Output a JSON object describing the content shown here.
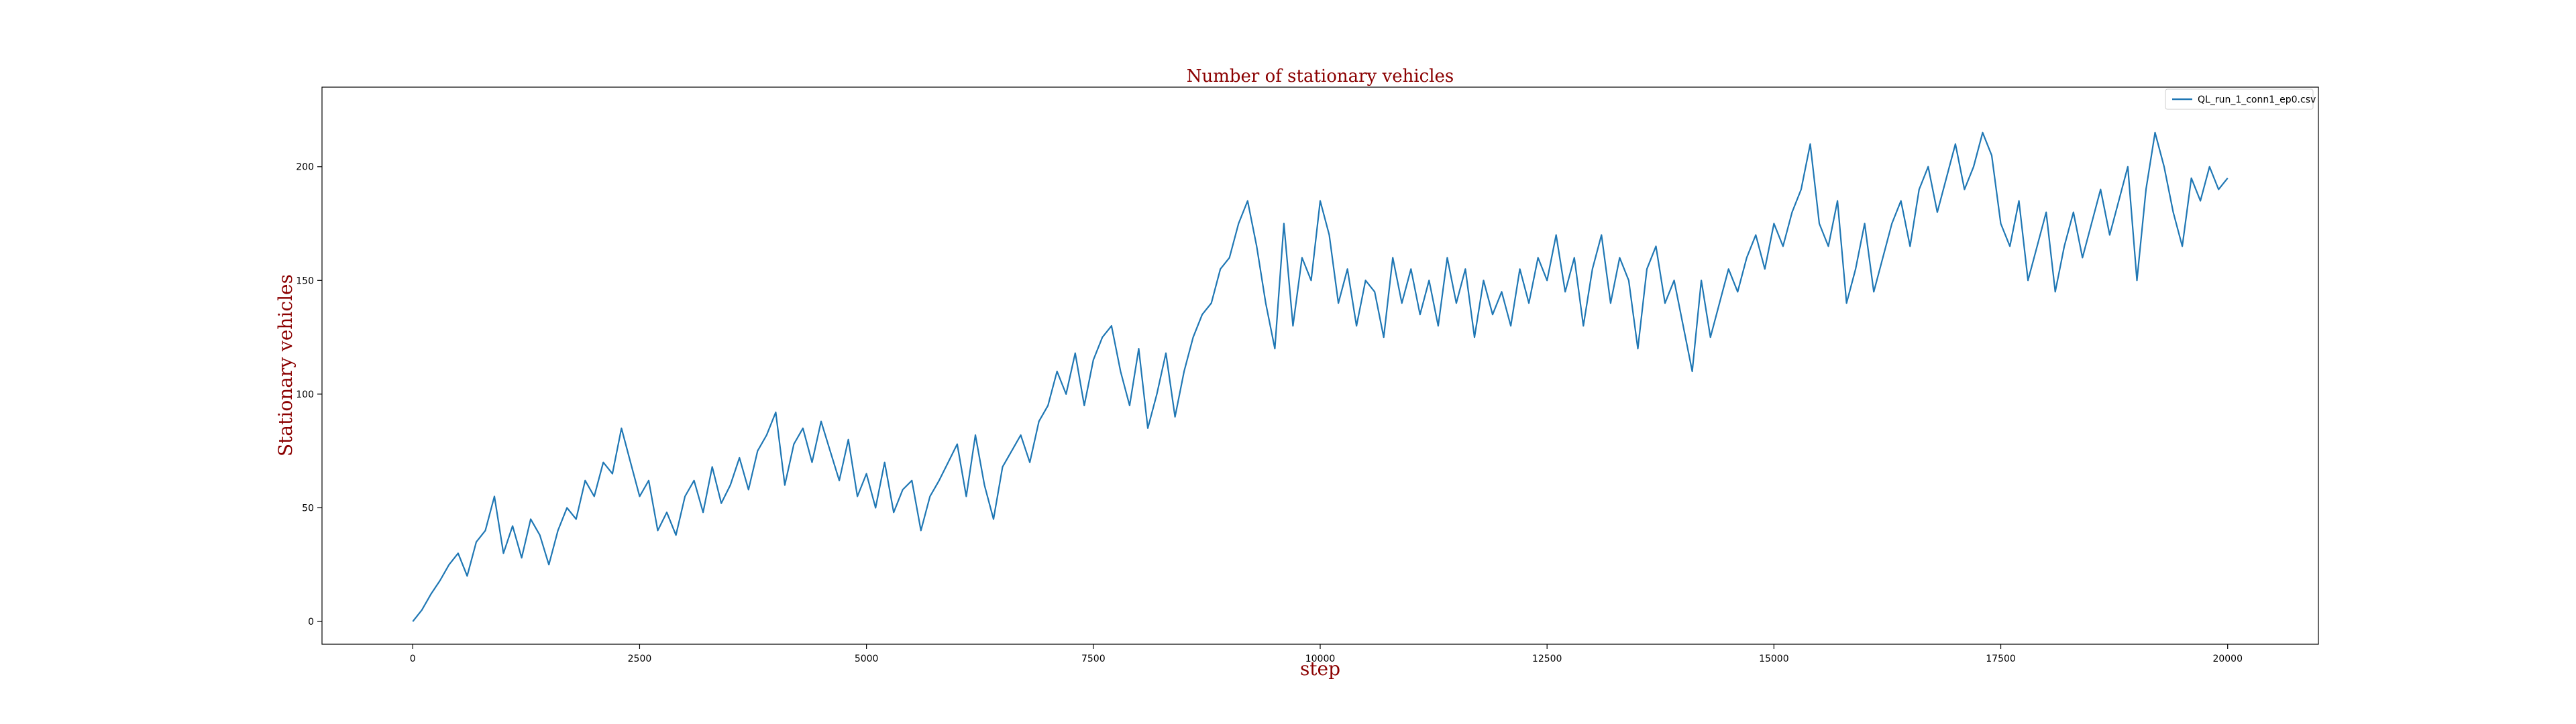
{
  "chart_data": {
    "type": "line",
    "title": "Number of stationary vehicles",
    "xlabel": "step",
    "ylabel": "Stationary vehicles",
    "xlim": [
      -1000,
      21000
    ],
    "ylim": [
      -10,
      235
    ],
    "xticks": [
      0,
      2500,
      5000,
      7500,
      10000,
      12500,
      15000,
      17500,
      20000
    ],
    "yticks": [
      0,
      50,
      100,
      150,
      200
    ],
    "grid": false,
    "legend_position": "top-right",
    "series": [
      {
        "name": "QL_run_1_conn1_ep0.csv",
        "color": "#1f77b4",
        "x": [
          0,
          100,
          200,
          300,
          400,
          500,
          600,
          700,
          800,
          900,
          1000,
          1100,
          1200,
          1300,
          1400,
          1500,
          1600,
          1700,
          1800,
          1900,
          2000,
          2100,
          2200,
          2300,
          2400,
          2500,
          2600,
          2700,
          2800,
          2900,
          3000,
          3100,
          3200,
          3300,
          3400,
          3500,
          3600,
          3700,
          3800,
          3900,
          4000,
          4100,
          4200,
          4300,
          4400,
          4500,
          4600,
          4700,
          4800,
          4900,
          5000,
          5100,
          5200,
          5300,
          5400,
          5500,
          5600,
          5700,
          5800,
          5900,
          6000,
          6100,
          6200,
          6300,
          6400,
          6500,
          6600,
          6700,
          6800,
          6900,
          7000,
          7100,
          7200,
          7300,
          7400,
          7500,
          7600,
          7700,
          7800,
          7900,
          8000,
          8100,
          8200,
          8300,
          8400,
          8500,
          8600,
          8700,
          8800,
          8900,
          9000,
          9100,
          9200,
          9300,
          9400,
          9500,
          9600,
          9700,
          9800,
          9900,
          10000,
          10100,
          10200,
          10300,
          10400,
          10500,
          10600,
          10700,
          10800,
          10900,
          11000,
          11100,
          11200,
          11300,
          11400,
          11500,
          11600,
          11700,
          11800,
          11900,
          12000,
          12100,
          12200,
          12300,
          12400,
          12500,
          12600,
          12700,
          12800,
          12900,
          13000,
          13100,
          13200,
          13300,
          13400,
          13500,
          13600,
          13700,
          13800,
          13900,
          14000,
          14100,
          14200,
          14300,
          14400,
          14500,
          14600,
          14700,
          14800,
          14900,
          15000,
          15100,
          15200,
          15300,
          15400,
          15500,
          15600,
          15700,
          15800,
          15900,
          16000,
          16100,
          16200,
          16300,
          16400,
          16500,
          16600,
          16700,
          16800,
          16900,
          17000,
          17100,
          17200,
          17300,
          17400,
          17500,
          17600,
          17700,
          17800,
          17900,
          18000,
          18100,
          18200,
          18300,
          18400,
          18500,
          18600,
          18700,
          18800,
          18900,
          19000,
          19100,
          19200,
          19300,
          19400,
          19500,
          19600,
          19700,
          19800,
          19900,
          20000
        ],
        "values": [
          0,
          5,
          12,
          18,
          25,
          30,
          20,
          35,
          40,
          55,
          30,
          42,
          28,
          45,
          38,
          25,
          40,
          50,
          45,
          62,
          55,
          70,
          65,
          85,
          70,
          55,
          62,
          40,
          48,
          38,
          55,
          62,
          48,
          68,
          52,
          60,
          72,
          58,
          75,
          82,
          92,
          60,
          78,
          85,
          70,
          88,
          75,
          62,
          80,
          55,
          65,
          50,
          70,
          48,
          58,
          62,
          40,
          55,
          62,
          70,
          78,
          55,
          82,
          60,
          45,
          68,
          75,
          82,
          70,
          88,
          95,
          110,
          100,
          118,
          95,
          115,
          125,
          130,
          110,
          95,
          120,
          85,
          100,
          118,
          90,
          110,
          125,
          135,
          140,
          155,
          160,
          175,
          185,
          165,
          140,
          120,
          175,
          130,
          160,
          150,
          185,
          170,
          140,
          155,
          130,
          150,
          145,
          125,
          160,
          140,
          155,
          135,
          150,
          130,
          160,
          140,
          155,
          125,
          150,
          135,
          145,
          130,
          155,
          140,
          160,
          150,
          170,
          145,
          160,
          130,
          155,
          170,
          140,
          160,
          150,
          120,
          155,
          165,
          140,
          150,
          130,
          110,
          150,
          125,
          140,
          155,
          145,
          160,
          170,
          155,
          175,
          165,
          180,
          190,
          210,
          175,
          165,
          185,
          140,
          155,
          175,
          145,
          160,
          175,
          185,
          165,
          190,
          200,
          180,
          195,
          210,
          190,
          200,
          215,
          205,
          175,
          165,
          185,
          150,
          165,
          180,
          145,
          165,
          180,
          160,
          175,
          190,
          170,
          185,
          200,
          150,
          190,
          215,
          200,
          180,
          165,
          195,
          185,
          200,
          190,
          195
        ]
      }
    ]
  }
}
